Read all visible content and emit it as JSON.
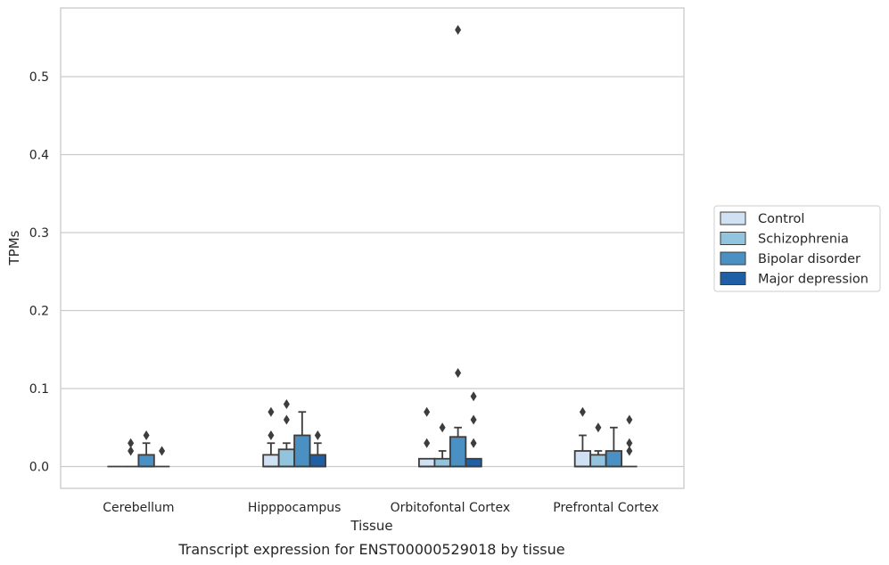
{
  "chart_data": {
    "type": "box",
    "title": "",
    "xlabel": "Tissue",
    "ylabel": "TPMs",
    "caption": "Transcript expression for ENST00000529018 by tissue",
    "ylim": [
      -0.028,
      0.588
    ],
    "yticks": [
      0.0,
      0.1,
      0.2,
      0.3,
      0.4,
      0.5
    ],
    "ytick_labels": [
      "0.0",
      "0.1",
      "0.2",
      "0.3",
      "0.4",
      "0.5"
    ],
    "grid": "horizontal",
    "legend_position": "right",
    "categories": [
      "Cerebellum",
      "Hipppocampus",
      "Orbitofontal Cortex",
      "Prefrontal Cortex"
    ],
    "series": [
      {
        "name": "Control",
        "color": "#cfe1f2",
        "boxes": [
          {
            "q1": 0,
            "median": 0,
            "q3": 0,
            "whisker_low": 0,
            "whisker_high": 0,
            "outliers": []
          },
          {
            "q1": 0,
            "median": 0,
            "q3": 0.015,
            "whisker_low": 0,
            "whisker_high": 0.03,
            "outliers": [
              0.04,
              0.07
            ]
          },
          {
            "q1": 0,
            "median": 0,
            "q3": 0.01,
            "whisker_low": 0,
            "whisker_high": 0.01,
            "outliers": [
              0.03,
              0.07
            ]
          },
          {
            "q1": 0,
            "median": 0,
            "q3": 0.02,
            "whisker_low": 0,
            "whisker_high": 0.04,
            "outliers": [
              0.07
            ]
          }
        ]
      },
      {
        "name": "Schizophrenia",
        "color": "#93c4de",
        "boxes": [
          {
            "q1": 0,
            "median": 0,
            "q3": 0,
            "whisker_low": 0,
            "whisker_high": 0,
            "outliers": [
              0.02,
              0.03
            ]
          },
          {
            "q1": 0,
            "median": 0,
            "q3": 0.022,
            "whisker_low": 0,
            "whisker_high": 0.03,
            "outliers": [
              0.06,
              0.08
            ]
          },
          {
            "q1": 0,
            "median": 0,
            "q3": 0.01,
            "whisker_low": 0,
            "whisker_high": 0.02,
            "outliers": [
              0.05
            ]
          },
          {
            "q1": 0,
            "median": 0,
            "q3": 0.015,
            "whisker_low": 0,
            "whisker_high": 0.02,
            "outliers": [
              0.05
            ]
          }
        ]
      },
      {
        "name": "Bipolar disorder",
        "color": "#4a90c2",
        "boxes": [
          {
            "q1": 0,
            "median": 0,
            "q3": 0.015,
            "whisker_low": 0,
            "whisker_high": 0.03,
            "outliers": [
              0.04
            ]
          },
          {
            "q1": 0,
            "median": 0,
            "q3": 0.04,
            "whisker_low": 0,
            "whisker_high": 0.07,
            "outliers": []
          },
          {
            "q1": 0,
            "median": 0,
            "q3": 0.038,
            "whisker_low": 0,
            "whisker_high": 0.05,
            "outliers": [
              0.12,
              0.56
            ]
          },
          {
            "q1": 0,
            "median": 0,
            "q3": 0.02,
            "whisker_low": 0,
            "whisker_high": 0.05,
            "outliers": []
          }
        ]
      },
      {
        "name": "Major depression",
        "color": "#1f5fa5",
        "boxes": [
          {
            "q1": 0,
            "median": 0,
            "q3": 0,
            "whisker_low": 0,
            "whisker_high": 0,
            "outliers": [
              0.02
            ]
          },
          {
            "q1": 0,
            "median": 0,
            "q3": 0.015,
            "whisker_low": 0,
            "whisker_high": 0.03,
            "outliers": [
              0.04
            ]
          },
          {
            "q1": 0,
            "median": 0,
            "q3": 0.01,
            "whisker_low": 0,
            "whisker_high": 0.01,
            "outliers": [
              0.03,
              0.06,
              0.09
            ]
          },
          {
            "q1": 0,
            "median": 0,
            "q3": 0,
            "whisker_low": 0,
            "whisker_high": 0,
            "outliers": [
              0.02,
              0.03,
              0.06
            ]
          }
        ]
      }
    ]
  }
}
